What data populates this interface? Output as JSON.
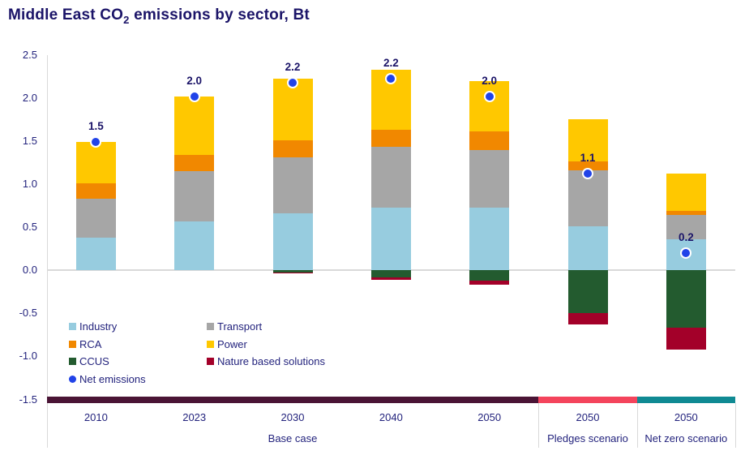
{
  "title": {
    "pre": "Middle East CO",
    "sub": "2",
    "post": " emissions by sector, Bt"
  },
  "chart_data": {
    "type": "bar",
    "subtype": "stacked-with-net-dot",
    "title": "Middle East CO2 emissions by sector, Bt",
    "ylabel": "Bt",
    "ylim": [
      -1.5,
      2.5
    ],
    "yticks": [
      2.5,
      2.0,
      1.5,
      1.0,
      0.5,
      0.0,
      -0.5,
      -1.0,
      -1.5
    ],
    "grid": "zero-line-only",
    "categories": [
      "2010",
      "2023",
      "2030",
      "2040",
      "2050",
      "2050",
      "2050"
    ],
    "groups": [
      {
        "label": "Base case",
        "from": 0,
        "to": 4,
        "strip_color": "#4a1435"
      },
      {
        "label": "Pledges scenario",
        "from": 5,
        "to": 5,
        "strip_color": "#f4445c"
      },
      {
        "label": "Net zero scenario",
        "from": 6,
        "to": 6,
        "strip_color": "#108a93"
      }
    ],
    "series": [
      {
        "name": "Industry",
        "color": "#97ccdf",
        "values": [
          0.38,
          0.57,
          0.66,
          0.73,
          0.73,
          0.51,
          0.36
        ]
      },
      {
        "name": "Transport",
        "color": "#a6a6a6",
        "values": [
          0.45,
          0.58,
          0.65,
          0.7,
          0.66,
          0.65,
          0.28
        ]
      },
      {
        "name": "RCA",
        "color": "#f18800",
        "values": [
          0.18,
          0.19,
          0.2,
          0.2,
          0.22,
          0.1,
          0.05
        ]
      },
      {
        "name": "Power",
        "color": "#ffc800",
        "values": [
          0.48,
          0.68,
          0.71,
          0.7,
          0.58,
          0.49,
          0.43
        ]
      },
      {
        "name": "CCUS",
        "color": "#235b2f",
        "values": [
          0,
          0,
          -0.03,
          -0.08,
          -0.12,
          -0.5,
          -0.67
        ]
      },
      {
        "name": "Nature based solutions",
        "color": "#a30029",
        "values": [
          0,
          0,
          -0.01,
          -0.03,
          -0.05,
          -0.13,
          -0.25
        ]
      }
    ],
    "net": {
      "name": "Net emissions",
      "color": "#2143e8",
      "values": [
        1.49,
        2.02,
        2.18,
        2.22,
        2.02,
        1.12,
        0.2
      ],
      "labels": [
        "1.5",
        "2.0",
        "2.2",
        "2.2",
        "2.0",
        "1.1",
        "0.2"
      ]
    },
    "legend": {
      "position": "inside-bottom-left",
      "items": [
        {
          "label": "Industry",
          "color": "#97ccdf",
          "shape": "square",
          "row": 0,
          "col": 0
        },
        {
          "label": "Transport",
          "color": "#a6a6a6",
          "shape": "square",
          "row": 0,
          "col": 1
        },
        {
          "label": "RCA",
          "color": "#f18800",
          "shape": "square",
          "row": 1,
          "col": 0
        },
        {
          "label": "Power",
          "color": "#ffc800",
          "shape": "square",
          "row": 1,
          "col": 1
        },
        {
          "label": "CCUS",
          "color": "#235b2f",
          "shape": "square",
          "row": 2,
          "col": 0
        },
        {
          "label": "Nature based solutions",
          "color": "#a30029",
          "shape": "square",
          "row": 2,
          "col": 1
        },
        {
          "label": "Net emissions",
          "color": "#2143e8",
          "shape": "circle",
          "row": 3,
          "col": 0
        }
      ]
    }
  }
}
